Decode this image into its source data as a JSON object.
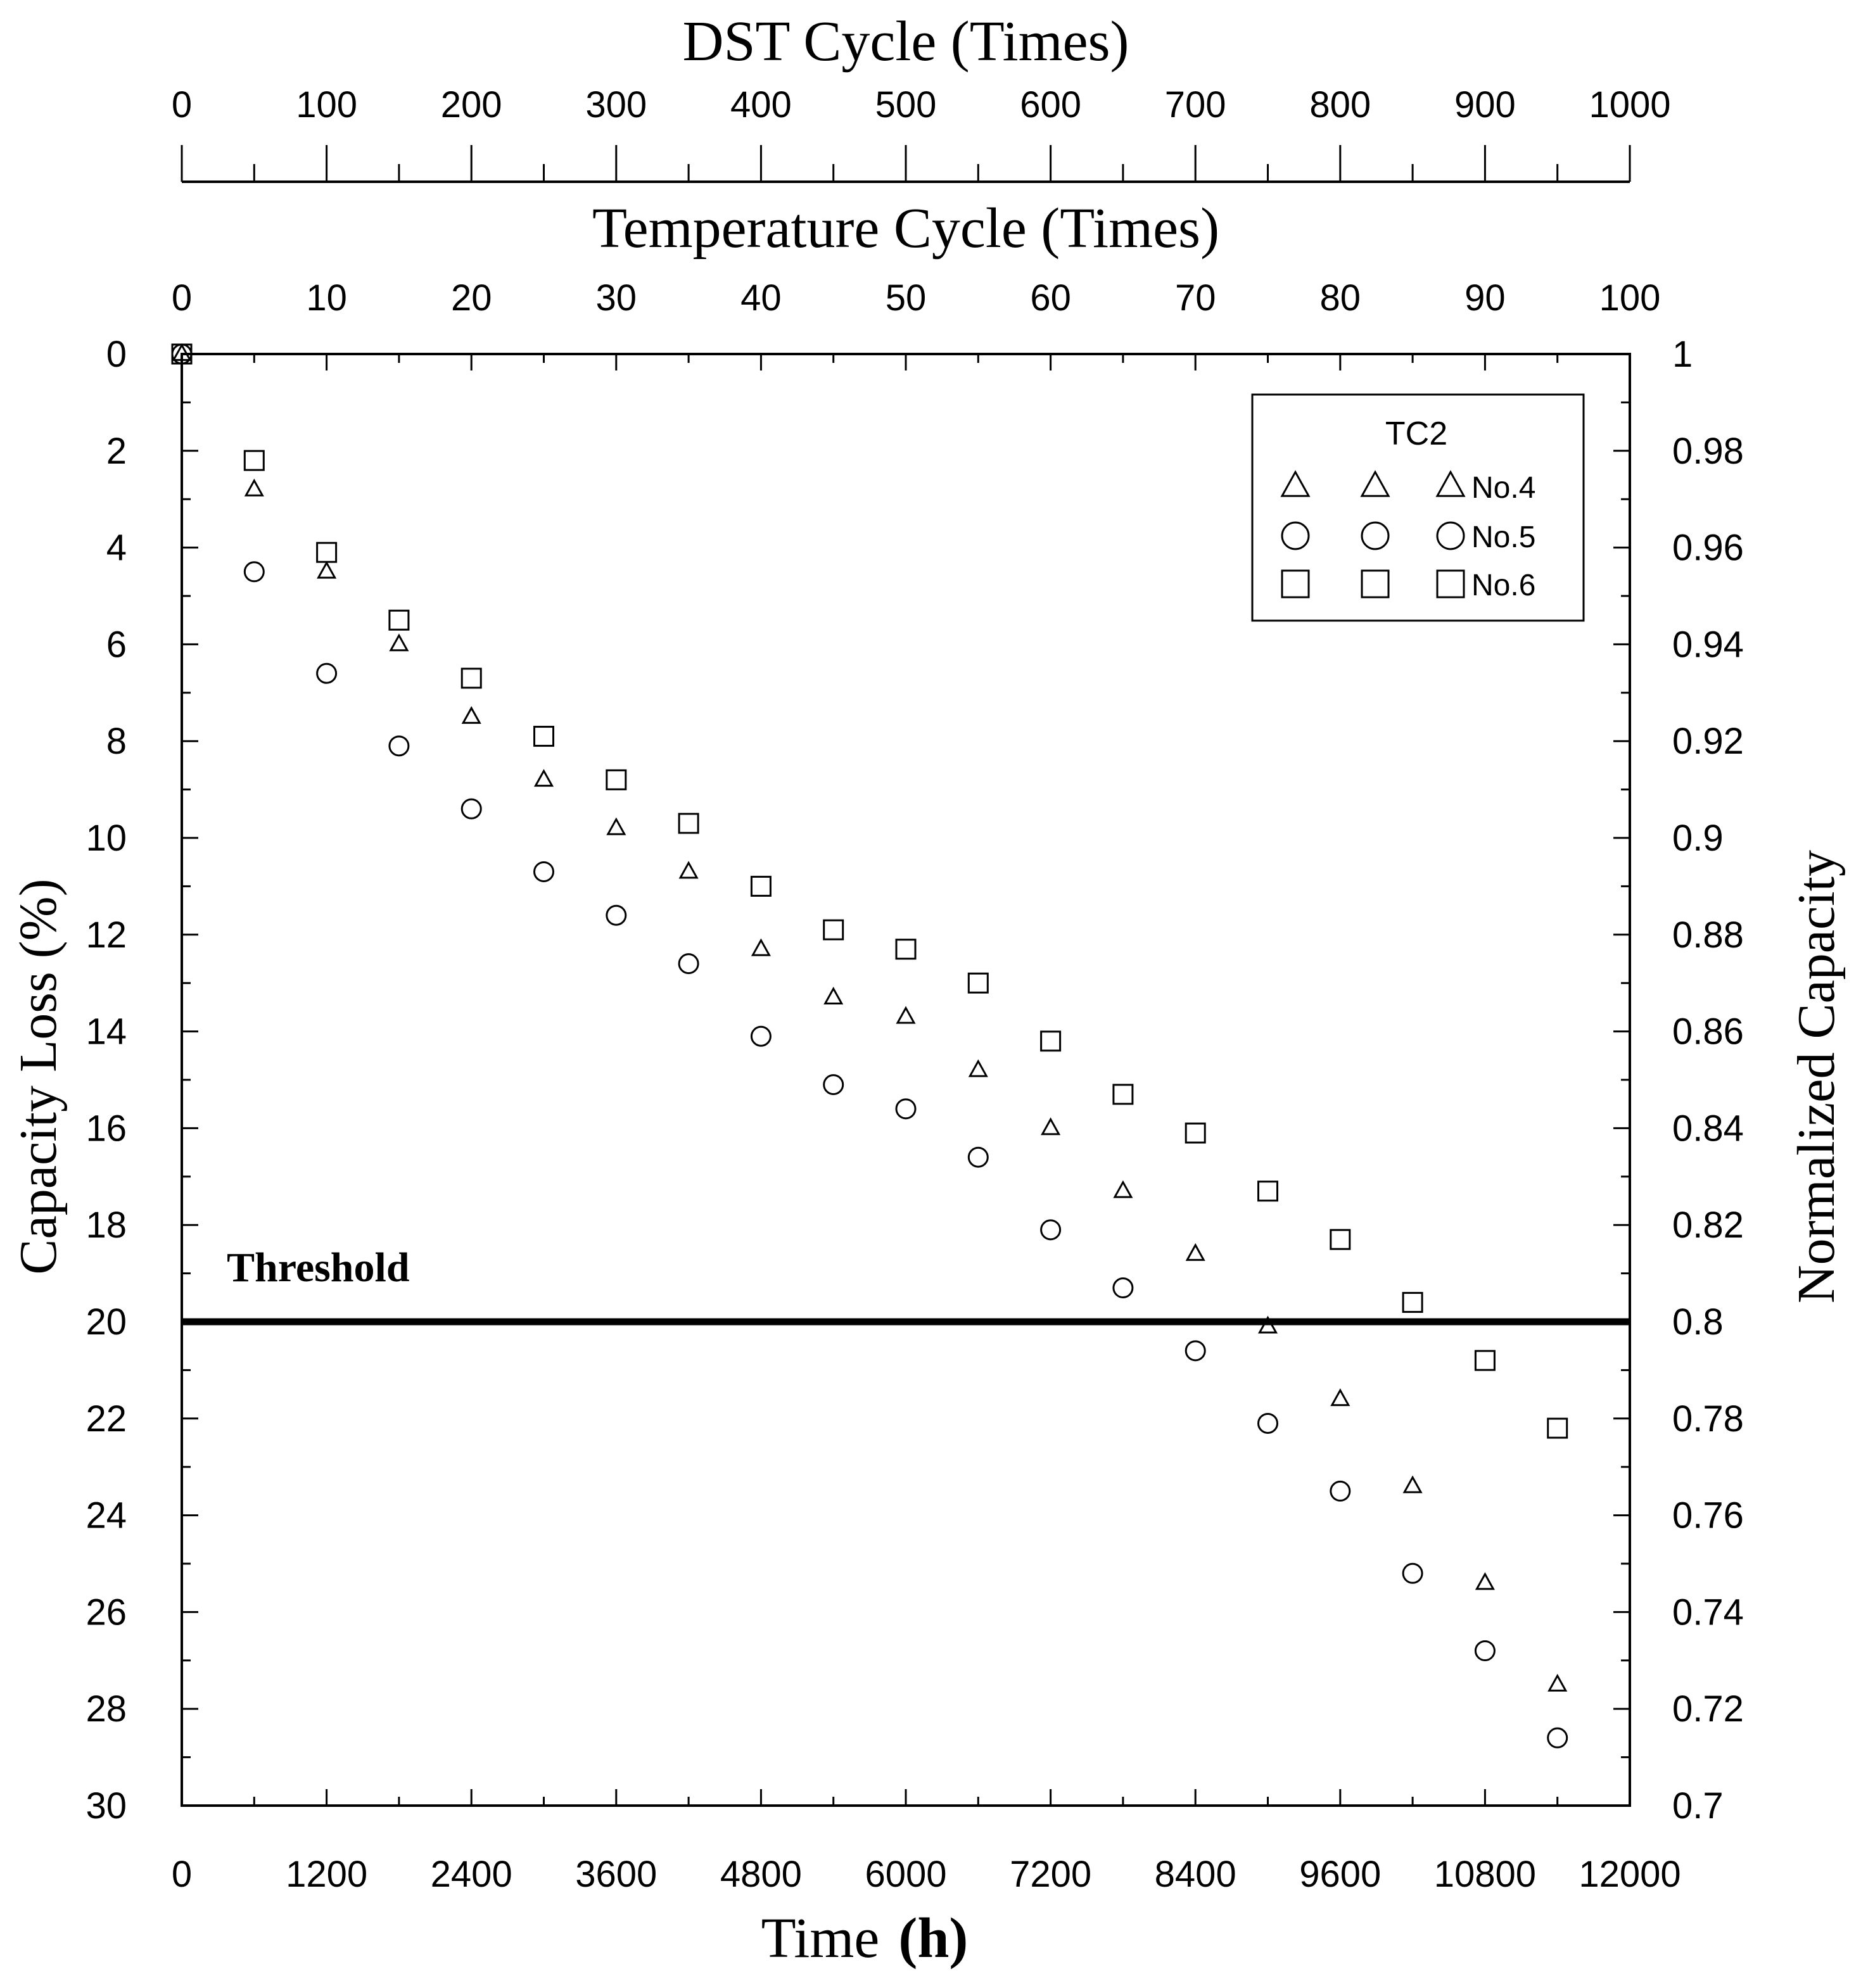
{
  "chart_data": {
    "type": "scatter",
    "axes": {
      "bottom": {
        "label_main": "Time",
        "label_unit": "(h)",
        "min": 0,
        "max": 12000,
        "ticks": [
          0,
          1200,
          2400,
          3600,
          4800,
          6000,
          7200,
          8400,
          9600,
          10800,
          12000
        ]
      },
      "left": {
        "label": "Capacity Loss (%)",
        "min": 0,
        "max": 30,
        "inverted": true,
        "ticks": [
          0,
          2,
          4,
          6,
          8,
          10,
          12,
          14,
          16,
          18,
          20,
          22,
          24,
          26,
          28,
          30
        ]
      },
      "right": {
        "label": "Normalized Capacity",
        "min": 0.7,
        "max": 1,
        "ticks": [
          "1",
          "0.98",
          "0.96",
          "0.94",
          "0.92",
          "0.9",
          "0.88",
          "0.86",
          "0.84",
          "0.82",
          "0.8",
          "0.78",
          "0.76",
          "0.74",
          "0.72",
          "0.7"
        ]
      },
      "top_temperature": {
        "label": "Temperature Cycle (Times)",
        "min": 0,
        "max": 100,
        "ticks": [
          0,
          10,
          20,
          30,
          40,
          50,
          60,
          70,
          80,
          90,
          100
        ]
      },
      "top_dst": {
        "label": "DST Cycle (Times)",
        "min": 0,
        "max": 1000,
        "ticks": [
          0,
          100,
          200,
          300,
          400,
          500,
          600,
          700,
          800,
          900,
          1000
        ]
      }
    },
    "threshold": {
      "label": "Threshold",
      "value": 20
    },
    "legend": {
      "title": "TC2",
      "position": "top-right"
    },
    "series": [
      {
        "name": "No.4",
        "marker": "triangle",
        "x": [
          0,
          600,
          1200,
          1800,
          2400,
          3000,
          3600,
          4200,
          4800,
          5400,
          6000,
          6600,
          7200,
          7800,
          8400,
          9000,
          9600,
          10200,
          10800,
          11400
        ],
        "y": [
          0,
          2.8,
          4.5,
          6.0,
          7.5,
          8.8,
          9.8,
          10.7,
          12.3,
          13.3,
          13.7,
          14.8,
          16.0,
          17.3,
          18.6,
          20.1,
          21.6,
          23.4,
          25.4,
          27.5
        ]
      },
      {
        "name": "No.5",
        "marker": "circle",
        "x": [
          0,
          600,
          1200,
          1800,
          2400,
          3000,
          3600,
          4200,
          4800,
          5400,
          6000,
          6600,
          7200,
          7800,
          8400,
          9000,
          9600,
          10200,
          10800,
          11400
        ],
        "y": [
          0,
          4.5,
          6.6,
          8.1,
          9.4,
          10.7,
          11.6,
          12.6,
          14.1,
          15.1,
          15.6,
          16.6,
          18.1,
          19.3,
          20.6,
          22.1,
          23.5,
          25.2,
          26.8,
          28.6
        ]
      },
      {
        "name": "No.6",
        "marker": "square",
        "x": [
          0,
          600,
          1200,
          1800,
          2400,
          3000,
          3600,
          4200,
          4800,
          5400,
          6000,
          6600,
          7200,
          7800,
          8400,
          9000,
          9600,
          10200,
          10800,
          11400
        ],
        "y": [
          0,
          2.2,
          4.1,
          5.5,
          6.7,
          7.9,
          8.8,
          9.7,
          11.0,
          11.9,
          12.3,
          13.0,
          14.2,
          15.3,
          16.1,
          17.3,
          18.3,
          19.6,
          20.8,
          22.2
        ]
      }
    ]
  }
}
